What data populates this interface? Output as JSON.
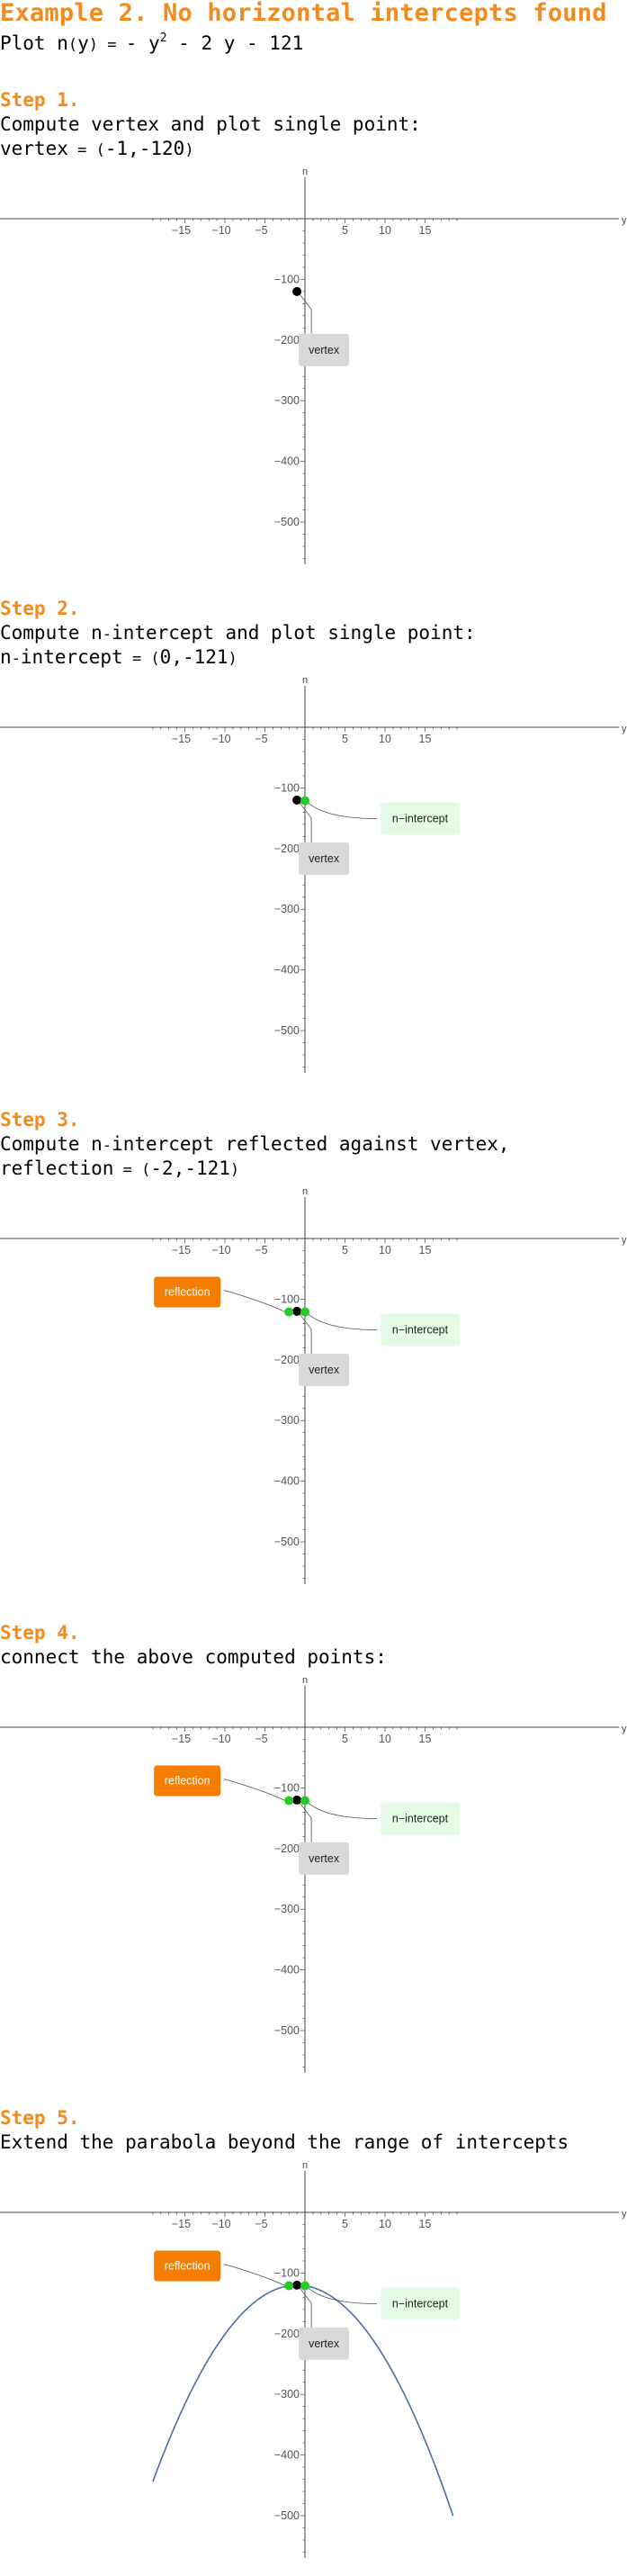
{
  "header": {
    "title": "Example 2. No horizontal intercepts found",
    "plot_prefix": "Plot ",
    "func_name": "n",
    "paren_open": "(",
    "var": "y",
    "paren_close": ")",
    "equals": " = ",
    "rhs_a": "- y",
    "exponent": "2",
    "rhs_b": " - 2 y - 121"
  },
  "steps": [
    {
      "heading": "Step 1.",
      "lines": [
        {
          "parts": [
            [
              "Compute vertex and plot single point:",
              false
            ]
          ]
        },
        {
          "parts": [
            [
              "vertex",
              false
            ],
            [
              " = ",
              true
            ],
            [
              "(",
              true
            ],
            [
              "-1,-120",
              false
            ],
            [
              ")",
              true
            ]
          ]
        }
      ]
    },
    {
      "heading": "Step 2.",
      "lines": [
        {
          "parts": [
            [
              "Compute n",
              false
            ],
            [
              "-",
              true
            ],
            [
              "intercept and plot single point:",
              false
            ]
          ]
        },
        {
          "parts": [
            [
              "n",
              false
            ],
            [
              "-",
              true
            ],
            [
              "intercept",
              false
            ],
            [
              " = ",
              true
            ],
            [
              "(",
              true
            ],
            [
              "0,-121",
              false
            ],
            [
              ")",
              true
            ]
          ]
        }
      ]
    },
    {
      "heading": "Step 3.",
      "lines": [
        {
          "parts": [
            [
              "Compute n",
              false
            ],
            [
              "-",
              true
            ],
            [
              "intercept reflected against vertex,",
              false
            ]
          ]
        },
        {
          "parts": [
            [
              "reflection",
              false
            ],
            [
              " = ",
              true
            ],
            [
              "(",
              true
            ],
            [
              "-2,-121",
              false
            ],
            [
              ")",
              true
            ]
          ]
        }
      ]
    },
    {
      "heading": "Step 4.",
      "lines": [
        {
          "parts": [
            [
              "connect the above computed points:",
              false
            ]
          ]
        }
      ]
    },
    {
      "heading": "Step 5.",
      "lines": [
        {
          "parts": [
            [
              "Extend the parabola beyond the range of intercepts",
              false
            ]
          ]
        }
      ]
    }
  ],
  "chart_data": [
    {
      "type": "scatter",
      "title": "",
      "xlabel": "y",
      "ylabel": "n",
      "xticks": [
        -15,
        -10,
        -5,
        5,
        10,
        15
      ],
      "yticks": [
        -100,
        -200,
        -300,
        -400,
        -500
      ],
      "points": [
        {
          "label": "vertex",
          "x": -1,
          "y": -120,
          "color": "#000000"
        }
      ],
      "callouts": [
        {
          "text": "vertex",
          "point": 0,
          "style": "gray"
        }
      ]
    },
    {
      "type": "scatter",
      "title": "",
      "xlabel": "y",
      "ylabel": "n",
      "xticks": [
        -15,
        -10,
        -5,
        5,
        10,
        15
      ],
      "yticks": [
        -100,
        -200,
        -300,
        -400,
        -500
      ],
      "points": [
        {
          "label": "vertex",
          "x": -1,
          "y": -120,
          "color": "#000000"
        },
        {
          "label": "n-intercept",
          "x": 0,
          "y": -121,
          "color": "#22cc22"
        }
      ],
      "callouts": [
        {
          "text": "vertex",
          "point": 0,
          "style": "gray"
        },
        {
          "text": "n−intercept",
          "point": 1,
          "style": "green"
        }
      ]
    },
    {
      "type": "scatter",
      "title": "",
      "xlabel": "y",
      "ylabel": "n",
      "xticks": [
        -15,
        -10,
        -5,
        5,
        10,
        15
      ],
      "yticks": [
        -100,
        -200,
        -300,
        -400,
        -500
      ],
      "points": [
        {
          "label": "vertex",
          "x": -1,
          "y": -120,
          "color": "#000000"
        },
        {
          "label": "n-intercept",
          "x": 0,
          "y": -121,
          "color": "#22cc22"
        },
        {
          "label": "reflection",
          "x": -2,
          "y": -121,
          "color": "#22cc22"
        }
      ],
      "callouts": [
        {
          "text": "vertex",
          "point": 0,
          "style": "gray"
        },
        {
          "text": "n−intercept",
          "point": 1,
          "style": "green"
        },
        {
          "text": "reflection",
          "point": 2,
          "style": "orange"
        }
      ]
    },
    {
      "type": "scatter",
      "title": "",
      "xlabel": "y",
      "ylabel": "n",
      "xticks": [
        -15,
        -10,
        -5,
        5,
        10,
        15
      ],
      "yticks": [
        -100,
        -200,
        -300,
        -400,
        -500
      ],
      "points": [
        {
          "label": "vertex",
          "x": -1,
          "y": -120,
          "color": "#000000"
        },
        {
          "label": "n-intercept",
          "x": 0,
          "y": -121,
          "color": "#22cc22"
        },
        {
          "label": "reflection",
          "x": -2,
          "y": -121,
          "color": "#22cc22"
        }
      ],
      "callouts": [
        {
          "text": "vertex",
          "point": 0,
          "style": "gray"
        },
        {
          "text": "n−intercept",
          "point": 1,
          "style": "green"
        },
        {
          "text": "reflection",
          "point": 2,
          "style": "orange"
        }
      ]
    },
    {
      "type": "line",
      "title": "",
      "xlabel": "y",
      "ylabel": "n",
      "xticks": [
        -15,
        -10,
        -5,
        5,
        10,
        15
      ],
      "yticks": [
        -100,
        -200,
        -300,
        -400,
        -500
      ],
      "curve": {
        "expression": "-y^2 - 2 y - 121",
        "x_range": [
          -19,
          18.5
        ],
        "color": "#4a6fa5"
      },
      "points": [
        {
          "label": "vertex",
          "x": -1,
          "y": -120,
          "color": "#000000"
        },
        {
          "label": "n-intercept",
          "x": 0,
          "y": -121,
          "color": "#22cc22"
        },
        {
          "label": "reflection",
          "x": -2,
          "y": -121,
          "color": "#22cc22"
        }
      ],
      "callouts": [
        {
          "text": "vertex",
          "point": 0,
          "style": "gray"
        },
        {
          "text": "n−intercept",
          "point": 1,
          "style": "green"
        },
        {
          "text": "reflection",
          "point": 2,
          "style": "orange"
        }
      ]
    }
  ],
  "colors": {
    "accent": "#f28a1c",
    "green_point": "#22cc22",
    "curve": "#4a6fa5",
    "axis": "#444444"
  }
}
